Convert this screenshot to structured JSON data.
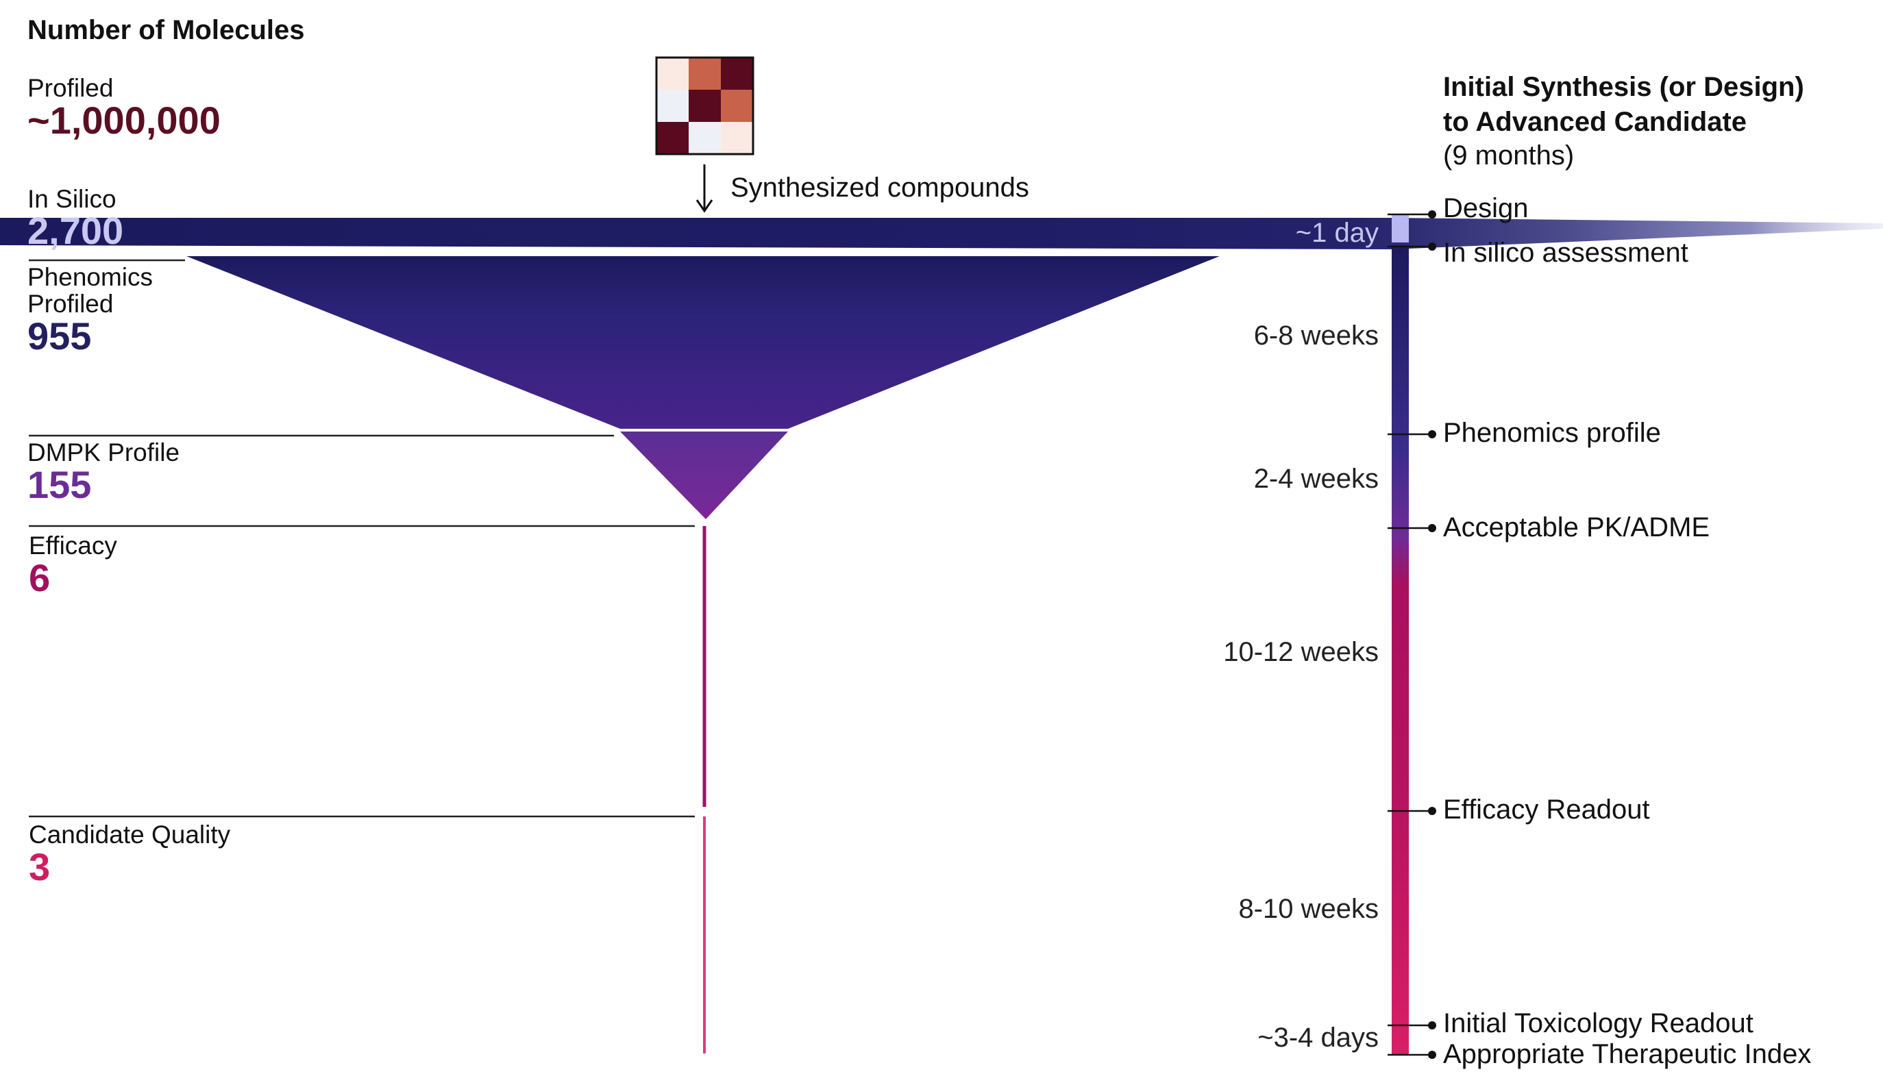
{
  "left_header": "Number of Molecules",
  "stages": [
    {
      "label": "Profiled",
      "count": "~1,000,000",
      "color": "#5a0f22"
    },
    {
      "label": "In Silico",
      "count": "2,700",
      "color": "#c8c8f2"
    },
    {
      "label": "Phenomics\nProfiled",
      "count": "955",
      "color": "#23205e"
    },
    {
      "label": "DMPK Profile",
      "count": "155",
      "color": "#6b2d95"
    },
    {
      "label": "Efficacy",
      "count": "6",
      "color": "#a11060"
    },
    {
      "label": "Candidate Quality",
      "count": "3",
      "color": "#d01c62"
    }
  ],
  "synth_note": "Synthesized compounds",
  "heatmap": {
    "cells": [
      [
        "#fbeae3",
        "#c9624a",
        "#5a0a1e"
      ],
      [
        "#eef0f7",
        "#5a0a1e",
        "#c9624a"
      ],
      [
        "#5a0a1e",
        "#eef0f7",
        "#fbeae3"
      ]
    ]
  },
  "right_header": {
    "line1": "Initial Synthesis (or Design)",
    "line2": "to Advanced Candidate",
    "sub": "(9 months)"
  },
  "durations": [
    "~1 day",
    "6-8 weeks",
    "2-4 weeks",
    "10-12 weeks",
    "8-10 weeks",
    "~3-4 days"
  ],
  "milestones": [
    "Design",
    "In silico assessment",
    "Phenomics profile",
    "Acceptable PK/ADME",
    "Efficacy Readout",
    "Initial Toxicology Readout",
    "Appropriate Therapeutic Index"
  ],
  "colors": {
    "navy": "#1c1a5e",
    "purple": "#6e2c97",
    "magenta": "#a8105f",
    "pink": "#d81f67",
    "lavender": "#b9b8f0"
  }
}
